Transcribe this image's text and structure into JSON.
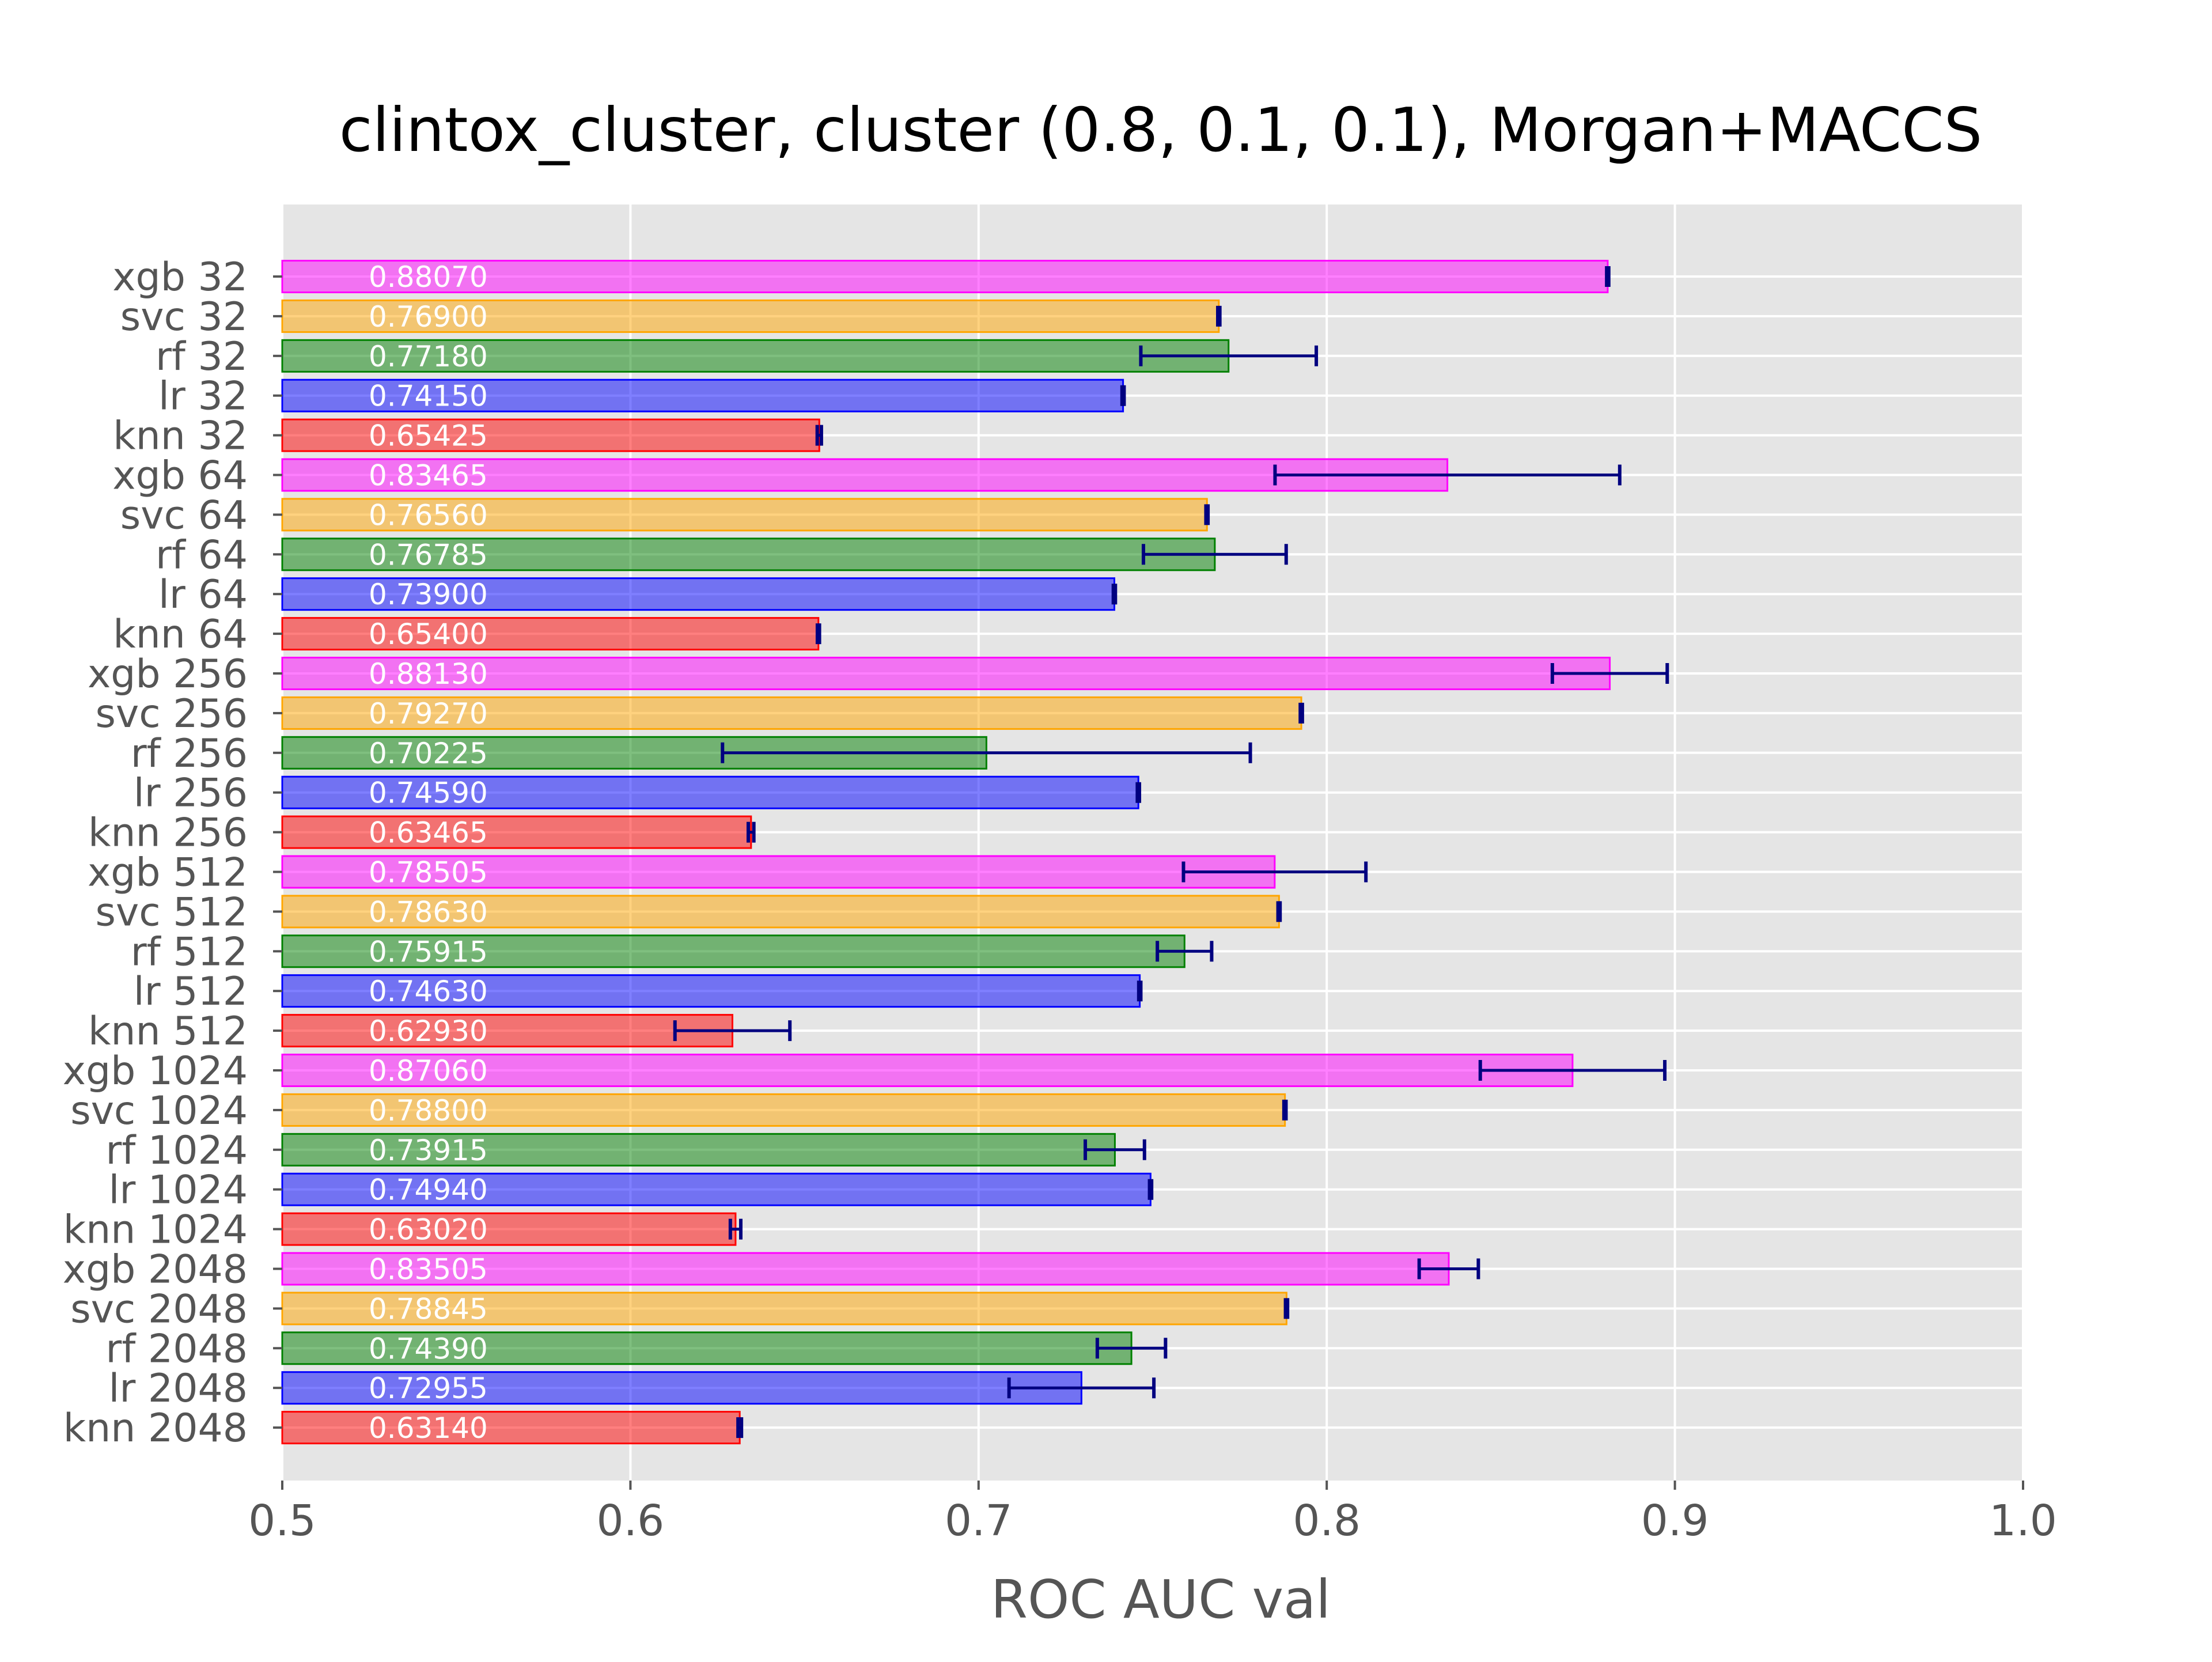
{
  "chart_data": {
    "type": "bar",
    "orientation": "horizontal",
    "title": "clintox_cluster, cluster (0.8, 0.1, 0.1), Morgan+MACCS",
    "xlabel": "ROC AUC val",
    "ylabel": "",
    "xlim": [
      0.5,
      1.0
    ],
    "xticks": [
      "0.5",
      "0.6",
      "0.7",
      "0.8",
      "0.9",
      "1.0"
    ],
    "grid": true,
    "colors": {
      "xgb": "#ff00ff",
      "svc": "#ffa500",
      "rf": "#008000",
      "lr": "#0000ff",
      "knn": "#ff0000",
      "error_bar": "#000080",
      "plot_bg": "#e5e5e5",
      "grid": "#ffffff"
    },
    "bars": [
      {
        "label": "xgb 32",
        "model": "xgb",
        "value": 0.8807,
        "value_label": "0.88070",
        "err": 0.0003
      },
      {
        "label": "svc 32",
        "model": "svc",
        "value": 0.769,
        "value_label": "0.76900",
        "err": 0.0003
      },
      {
        "label": "rf 32",
        "model": "rf",
        "value": 0.7718,
        "value_label": "0.77180",
        "err": 0.0252
      },
      {
        "label": "lr 32",
        "model": "lr",
        "value": 0.7415,
        "value_label": "0.74150",
        "err": 0.0003
      },
      {
        "label": "knn 32",
        "model": "knn",
        "value": 0.65425,
        "value_label": "0.65425",
        "err": 0.0006
      },
      {
        "label": "xgb 64",
        "model": "xgb",
        "value": 0.83465,
        "value_label": "0.83465",
        "err": 0.0495
      },
      {
        "label": "svc 64",
        "model": "svc",
        "value": 0.7656,
        "value_label": "0.76560",
        "err": 0.0003
      },
      {
        "label": "rf 64",
        "model": "rf",
        "value": 0.76785,
        "value_label": "0.76785",
        "err": 0.0205
      },
      {
        "label": "lr 64",
        "model": "lr",
        "value": 0.739,
        "value_label": "0.73900",
        "err": 0.0003
      },
      {
        "label": "knn 64",
        "model": "knn",
        "value": 0.654,
        "value_label": "0.65400",
        "err": 0.0003
      },
      {
        "label": "xgb 256",
        "model": "xgb",
        "value": 0.8813,
        "value_label": "0.88130",
        "err": 0.0165
      },
      {
        "label": "svc 256",
        "model": "svc",
        "value": 0.7927,
        "value_label": "0.79270",
        "err": 0.0003
      },
      {
        "label": "rf 256",
        "model": "rf",
        "value": 0.70225,
        "value_label": "0.70225",
        "err": 0.0758
      },
      {
        "label": "lr 256",
        "model": "lr",
        "value": 0.7459,
        "value_label": "0.74590",
        "err": 0.0003
      },
      {
        "label": "knn 256",
        "model": "knn",
        "value": 0.63465,
        "value_label": "0.63465",
        "err": 0.0008
      },
      {
        "label": "xgb 512",
        "model": "xgb",
        "value": 0.78505,
        "value_label": "0.78505",
        "err": 0.0262
      },
      {
        "label": "svc 512",
        "model": "svc",
        "value": 0.7863,
        "value_label": "0.78630",
        "err": 0.0003
      },
      {
        "label": "rf 512",
        "model": "rf",
        "value": 0.75915,
        "value_label": "0.75915",
        "err": 0.0078
      },
      {
        "label": "lr 512",
        "model": "lr",
        "value": 0.7463,
        "value_label": "0.74630",
        "err": 0.0003
      },
      {
        "label": "knn 512",
        "model": "knn",
        "value": 0.6293,
        "value_label": "0.62930",
        "err": 0.0165
      },
      {
        "label": "xgb 1024",
        "model": "xgb",
        "value": 0.8706,
        "value_label": "0.87060",
        "err": 0.0265
      },
      {
        "label": "svc 1024",
        "model": "svc",
        "value": 0.788,
        "value_label": "0.78800",
        "err": 0.0003
      },
      {
        "label": "rf 1024",
        "model": "rf",
        "value": 0.73915,
        "value_label": "0.73915",
        "err": 0.0085
      },
      {
        "label": "lr 1024",
        "model": "lr",
        "value": 0.7494,
        "value_label": "0.74940",
        "err": 0.0003
      },
      {
        "label": "knn 1024",
        "model": "knn",
        "value": 0.6302,
        "value_label": "0.63020",
        "err": 0.0015
      },
      {
        "label": "xgb 2048",
        "model": "xgb",
        "value": 0.83505,
        "value_label": "0.83505",
        "err": 0.0085
      },
      {
        "label": "svc 2048",
        "model": "svc",
        "value": 0.78845,
        "value_label": "0.78845",
        "err": 0.0003
      },
      {
        "label": "rf 2048",
        "model": "rf",
        "value": 0.7439,
        "value_label": "0.74390",
        "err": 0.0098
      },
      {
        "label": "lr 2048",
        "model": "lr",
        "value": 0.72955,
        "value_label": "0.72955",
        "err": 0.0208
      },
      {
        "label": "knn 2048",
        "model": "knn",
        "value": 0.6314,
        "value_label": "0.63140",
        "err": 0.0005
      }
    ]
  }
}
